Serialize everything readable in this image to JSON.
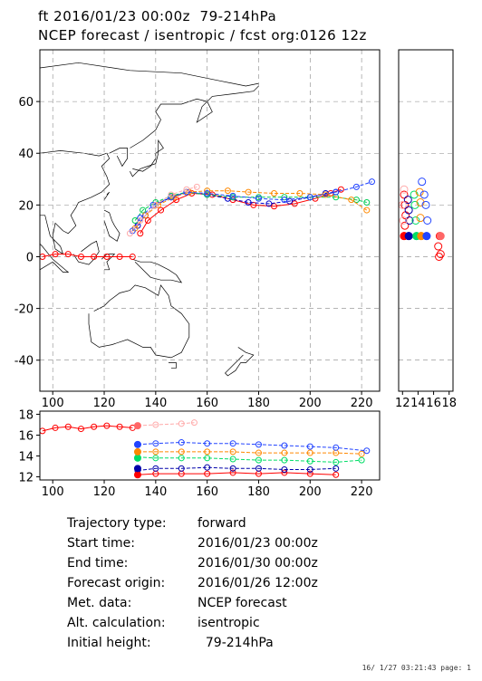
{
  "header": {
    "line1": "ft 2016/01/23 00:00z  79-214hPa",
    "line2": "NCEP forecast / isentropic / fcst org:0126 12z"
  },
  "chart_data": [
    {
      "type": "line",
      "panel": "map",
      "xlim": [
        95,
        227
      ],
      "ylim": [
        -52,
        80
      ],
      "x_ticks": [
        100,
        120,
        140,
        160,
        180,
        200,
        220
      ],
      "y_ticks": [
        -40,
        -20,
        0,
        20,
        40,
        60
      ],
      "grid": true,
      "series": [
        {
          "color": "#ff0000",
          "x": [
            134,
            137,
            142,
            148,
            154,
            162,
            170,
            178,
            186,
            194,
            202,
            208,
            212
          ],
          "y": [
            9,
            14,
            18,
            22,
            24.5,
            24,
            22,
            20,
            19.5,
            20.5,
            22.5,
            24.5,
            26
          ]
        },
        {
          "color": "#0000cc",
          "x": [
            133,
            136,
            140,
            146,
            152,
            160,
            168,
            176,
            184,
            192,
            200,
            206,
            210
          ],
          "y": [
            12,
            16,
            20,
            23,
            25,
            24,
            22.5,
            21,
            20.5,
            21.5,
            23,
            24.5,
            25
          ]
        },
        {
          "color": "#00cc55",
          "x": [
            132,
            135,
            140,
            146,
            152,
            160,
            170,
            180,
            190,
            200,
            210,
            218,
            222
          ],
          "y": [
            14,
            18,
            21,
            23.5,
            25,
            24,
            23,
            23,
            23,
            23,
            23,
            22,
            21
          ]
        },
        {
          "color": "#ff8800",
          "x": [
            132,
            136,
            141,
            147,
            153,
            160,
            168,
            176,
            186,
            196,
            206,
            216,
            222
          ],
          "y": [
            11,
            16,
            20,
            23,
            25,
            25.5,
            25.5,
            25,
            24.5,
            24.5,
            24,
            22,
            18
          ]
        },
        {
          "color": "#2244ff",
          "x": [
            131,
            134,
            139,
            146,
            152,
            160,
            170,
            180,
            190,
            200,
            210,
            218,
            224
          ],
          "y": [
            10,
            15,
            20,
            23,
            25,
            24.5,
            23.5,
            22.5,
            22,
            23,
            25,
            27,
            29
          ]
        },
        {
          "color": "#ffaaaa",
          "x": [
            130,
            134,
            140,
            146,
            152,
            156
          ],
          "y": [
            9,
            14,
            20,
            24,
            26,
            27
          ]
        },
        {
          "color": "#ff0000",
          "x": [
            96,
            101,
            106,
            111,
            116,
            121,
            126,
            131
          ],
          "y": [
            0,
            1,
            1,
            0,
            0,
            0,
            0,
            0
          ]
        }
      ]
    },
    {
      "type": "line",
      "panel": "bottom",
      "xlim": [
        95,
        227
      ],
      "ylim": [
        11.7,
        18.3
      ],
      "x_ticks": [
        100,
        120,
        140,
        160,
        180,
        200,
        220
      ],
      "y_ticks": [
        12,
        14,
        16,
        18
      ],
      "series": [
        {
          "color": "#ff0000",
          "x": [
            133,
            140,
            150,
            160,
            170,
            180,
            190,
            200,
            210
          ],
          "y": [
            12.2,
            12.3,
            12.3,
            12.3,
            12.4,
            12.3,
            12.4,
            12.3,
            12.2
          ]
        },
        {
          "color": "#0000aa",
          "x": [
            133,
            140,
            150,
            160,
            170,
            180,
            190,
            200,
            210
          ],
          "y": [
            12.6,
            12.8,
            12.8,
            12.9,
            12.8,
            12.8,
            12.7,
            12.7,
            12.8
          ]
        },
        {
          "color": "#00dd66",
          "x": [
            133,
            140,
            150,
            160,
            170,
            180,
            190,
            200,
            210,
            220
          ],
          "y": [
            13.9,
            13.8,
            13.8,
            13.8,
            13.7,
            13.6,
            13.6,
            13.5,
            13.4,
            13.6
          ]
        },
        {
          "color": "#ff8800",
          "x": [
            133,
            140,
            150,
            160,
            170,
            180,
            190,
            200,
            210,
            220
          ],
          "y": [
            14.4,
            14.4,
            14.4,
            14.4,
            14.4,
            14.3,
            14.3,
            14.3,
            14.3,
            14.2
          ]
        },
        {
          "color": "#2244ff",
          "x": [
            133,
            140,
            150,
            160,
            170,
            180,
            190,
            200,
            210,
            222
          ],
          "y": [
            15.1,
            15.2,
            15.3,
            15.2,
            15.2,
            15.1,
            15.0,
            14.9,
            14.8,
            14.5
          ]
        },
        {
          "color": "#ffaaaa",
          "x": [
            133,
            140,
            150,
            155
          ],
          "y": [
            16.9,
            17.0,
            17.1,
            17.2
          ]
        },
        {
          "color": "#ff0000",
          "x": [
            96,
            101,
            106,
            111,
            116,
            121,
            126,
            131
          ],
          "y": [
            16.4,
            16.7,
            16.8,
            16.6,
            16.8,
            16.9,
            16.8,
            16.7
          ]
        }
      ]
    },
    {
      "type": "scatter",
      "panel": "right",
      "xlim": [
        11.5,
        18.5
      ],
      "ylim": [
        -52,
        80
      ],
      "x_ticks": [
        12,
        14,
        16,
        18
      ],
      "series": [
        {
          "color": "#ff0000",
          "x": [
            12.2,
            12.3,
            12.4,
            12.3,
            12.2
          ],
          "y": [
            8,
            12,
            16,
            20,
            24
          ]
        },
        {
          "color": "#0000aa",
          "x": [
            12.8,
            12.9,
            12.8,
            12.7
          ],
          "y": [
            8,
            14,
            18,
            22
          ]
        },
        {
          "color": "#00dd66",
          "x": [
            13.8,
            13.7,
            13.6,
            13.5
          ],
          "y": [
            8,
            14,
            20,
            24
          ]
        },
        {
          "color": "#ff8800",
          "x": [
            14.4,
            14.3,
            14.3,
            14.2
          ],
          "y": [
            8,
            15,
            21,
            25
          ]
        },
        {
          "color": "#2244ff",
          "x": [
            15.1,
            15.2,
            15.0,
            14.8,
            14.5
          ],
          "y": [
            8,
            14,
            20,
            24,
            29
          ]
        },
        {
          "color": "#ffaaaa",
          "x": [
            12.1,
            12.0,
            12.2
          ],
          "y": [
            14,
            20,
            26
          ]
        },
        {
          "color": "#ff0000",
          "x": [
            16.8,
            16.6,
            16.9,
            16.7
          ],
          "y": [
            8,
            4,
            1,
            0
          ]
        }
      ]
    }
  ],
  "info": {
    "rows": [
      {
        "key": "Trajectory type:",
        "value": "forward"
      },
      {
        "key": "Start time:",
        "value": "2016/01/23 00:00z"
      },
      {
        "key": "End time:",
        "value": "2016/01/30 00:00z"
      },
      {
        "key": "Forecast origin:",
        "value": "2016/01/26 12:00z"
      },
      {
        "key": "Met. data:",
        "value": "NCEP forecast"
      },
      {
        "key": "Alt. calculation:",
        "value": "isentropic"
      },
      {
        "key": "Initial height:",
        "value": "  79-214hPa"
      }
    ]
  },
  "footer": {
    "text": "16/ 1/27 03:21:43 page: 1"
  }
}
